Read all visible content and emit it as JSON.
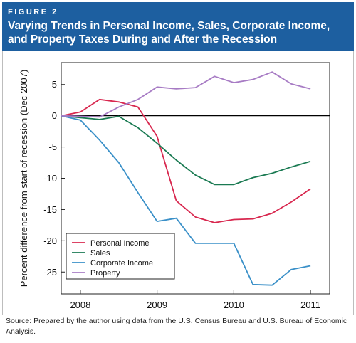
{
  "figure": {
    "label": "FIGURE 2",
    "title": "Varying Trends in Personal Income, Sales, Corporate Income, and Property Taxes During and After the Recession",
    "source": "Source: Prepared by the author using data from the U.S. Census Bureau and U.S. Bureau of Economic Analysis."
  },
  "colors": {
    "header_bg": "#1d5fa0",
    "header_text": "#ffffff"
  },
  "chart_data": {
    "type": "line",
    "title": "",
    "xlabel": "",
    "ylabel": "Percent difference from start of recession (Dec 2007)",
    "xlim": [
      2007.75,
      2011.25
    ],
    "ylim": [
      -28.5,
      8.5
    ],
    "xticks": [
      2008,
      2009,
      2010,
      2011
    ],
    "xtick_labels": [
      "2008",
      "2009",
      "2010",
      "2011"
    ],
    "yticks": [
      5,
      0,
      -5,
      -10,
      -15,
      -20,
      -25
    ],
    "ytick_labels": [
      "5",
      "0",
      "-5",
      "-10",
      "-15",
      "-20",
      "-25"
    ],
    "zero_line": true,
    "grid": false,
    "legend_position": "bottom-left",
    "series": [
      {
        "name": "Personal Income",
        "color": "#d8284f",
        "x": [
          2007.75,
          2008.0,
          2008.25,
          2008.5,
          2008.75,
          2009.0,
          2009.25,
          2009.5,
          2009.75,
          2010.0,
          2010.25,
          2010.5,
          2010.75,
          2011.0
        ],
        "y": [
          0.0,
          0.6,
          2.6,
          2.2,
          1.4,
          -3.3,
          -13.6,
          -16.2,
          -17.1,
          -16.6,
          -16.5,
          -15.6,
          -13.8,
          -11.7
        ]
      },
      {
        "name": "Sales",
        "color": "#1a7a52",
        "x": [
          2007.75,
          2008.0,
          2008.25,
          2008.5,
          2008.75,
          2009.0,
          2009.25,
          2009.5,
          2009.75,
          2010.0,
          2010.25,
          2010.5,
          2010.75,
          2011.0
        ],
        "y": [
          0.0,
          -0.3,
          -0.6,
          -0.1,
          -1.9,
          -4.4,
          -7.1,
          -9.5,
          -11.0,
          -11.0,
          -9.9,
          -9.2,
          -8.2,
          -7.3
        ]
      },
      {
        "name": "Corporate Income",
        "color": "#3a90c8",
        "x": [
          2007.75,
          2008.0,
          2008.25,
          2008.5,
          2008.75,
          2009.0,
          2009.25,
          2009.5,
          2009.75,
          2010.0,
          2010.25,
          2010.5,
          2010.75,
          2011.0
        ],
        "y": [
          0.0,
          -0.7,
          -3.9,
          -7.5,
          -12.3,
          -16.9,
          -16.4,
          -20.4,
          -20.4,
          -20.4,
          -27.0,
          -27.1,
          -24.6,
          -24.0
        ]
      },
      {
        "name": "Property",
        "color": "#a77bc4",
        "x": [
          2007.75,
          2008.0,
          2008.25,
          2008.5,
          2008.75,
          2009.0,
          2009.25,
          2009.5,
          2009.75,
          2010.0,
          2010.25,
          2010.5,
          2010.75,
          2011.0
        ],
        "y": [
          0.0,
          -0.1,
          -0.2,
          1.4,
          2.6,
          4.6,
          4.3,
          4.5,
          6.3,
          5.3,
          5.8,
          7.0,
          5.1,
          4.3
        ]
      }
    ]
  }
}
